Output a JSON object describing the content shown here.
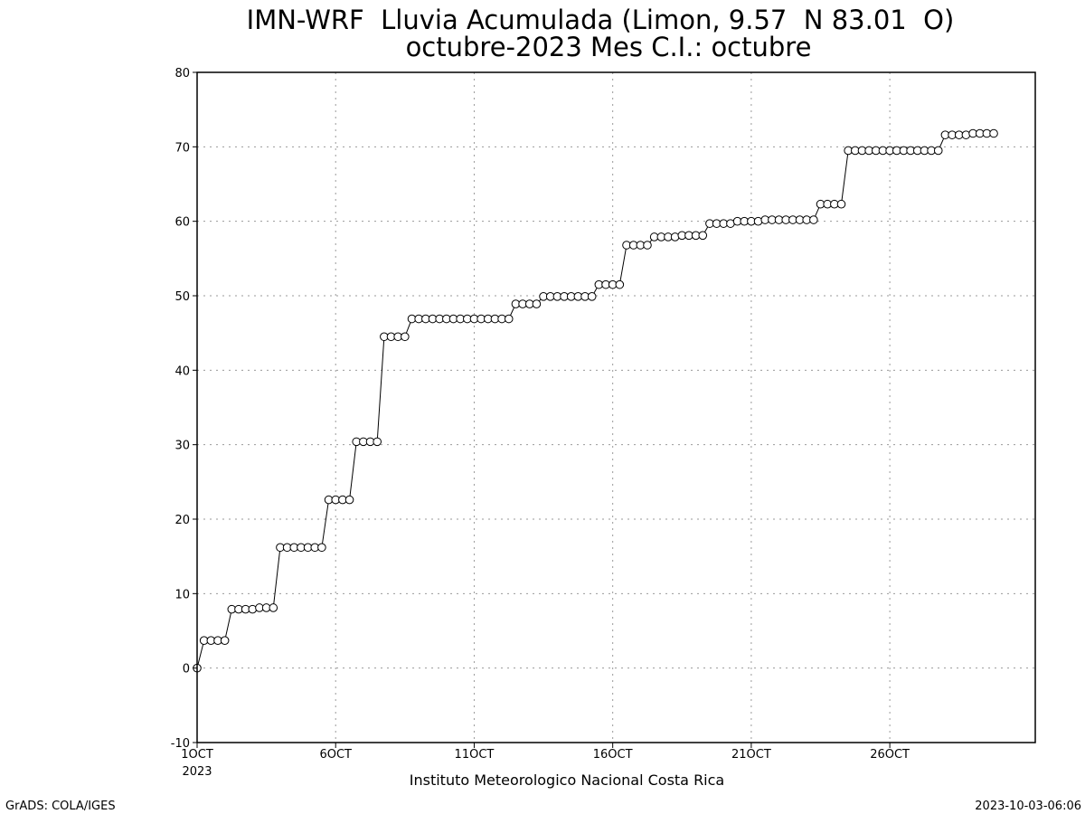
{
  "chart_data": {
    "type": "line",
    "title": "IMN-WRF  Lluvia Acumulada (Limon, 9.57  N 83.01  O)",
    "subtitle": "octubre-2023 Mes C.I.: octubre",
    "xlabel": "Instituto Meteorologico Nacional Costa Rica",
    "ylabel": "",
    "ylim": [
      -10,
      80
    ],
    "yticks": [
      -10,
      0,
      10,
      20,
      30,
      40,
      50,
      60,
      70,
      80
    ],
    "xlim": [
      1,
      31.25
    ],
    "xticks": [
      {
        "day": 1,
        "label": "1OCT",
        "sublabel": "2023"
      },
      {
        "day": 6,
        "label": "6OCT"
      },
      {
        "day": 11,
        "label": "11OCT"
      },
      {
        "day": 16,
        "label": "16OCT"
      },
      {
        "day": 21,
        "label": "21OCT"
      },
      {
        "day": 26,
        "label": "26OCT"
      }
    ],
    "grid": true,
    "marker": "open-circle",
    "series": [
      {
        "x_start_day": 1,
        "x_step_hours": 6,
        "values": [
          0.0,
          3.7,
          3.7,
          3.7,
          3.7,
          7.9,
          7.9,
          7.9,
          7.9,
          8.1,
          8.1,
          8.1,
          16.2,
          16.2,
          16.2,
          16.2,
          16.2,
          16.2,
          16.2,
          22.6,
          22.6,
          22.6,
          22.6,
          30.4,
          30.4,
          30.4,
          30.4,
          44.5,
          44.5,
          44.5,
          44.5,
          46.9,
          46.9,
          46.9,
          46.9,
          46.9,
          46.9,
          46.9,
          46.9,
          46.9,
          46.9,
          46.9,
          46.9,
          46.9,
          46.9,
          46.9,
          48.9,
          48.9,
          48.9,
          48.9,
          49.9,
          49.9,
          49.9,
          49.9,
          49.9,
          49.9,
          49.9,
          49.9,
          51.5,
          51.5,
          51.5,
          51.5,
          56.8,
          56.8,
          56.8,
          56.8,
          57.9,
          57.9,
          57.9,
          57.9,
          58.1,
          58.1,
          58.1,
          58.1,
          59.7,
          59.7,
          59.7,
          59.7,
          60.0,
          60.0,
          60.0,
          60.0,
          60.2,
          60.2,
          60.2,
          60.2,
          60.2,
          60.2,
          60.2,
          60.2,
          62.3,
          62.3,
          62.3,
          62.3,
          69.5,
          69.5,
          69.5,
          69.5,
          69.5,
          69.5,
          69.5,
          69.5,
          69.5,
          69.5,
          69.5,
          69.5,
          69.5,
          69.5,
          71.6,
          71.6,
          71.6,
          71.6,
          71.8,
          71.8,
          71.8,
          71.8
        ]
      }
    ]
  },
  "footer": {
    "left": "GrADS: COLA/IGES",
    "right": "2023-10-03-06:06"
  }
}
